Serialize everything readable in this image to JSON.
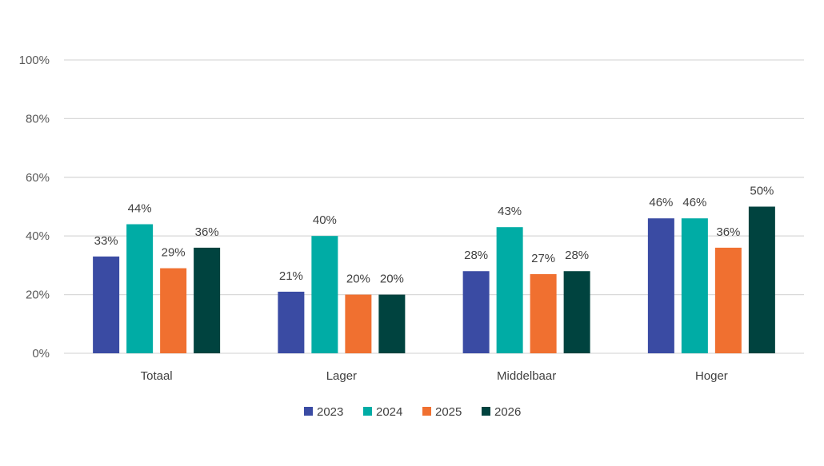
{
  "chart_data": {
    "type": "bar",
    "title": "",
    "xlabel": "",
    "ylabel": "",
    "ylim": [
      0,
      100
    ],
    "yticks": [
      "0%",
      "20%",
      "40%",
      "60%",
      "80%",
      "100%"
    ],
    "ytick_values": [
      0,
      20,
      40,
      60,
      80,
      100
    ],
    "categories": [
      "Totaal",
      "Lager",
      "Middelbaar",
      "Hoger"
    ],
    "series": [
      {
        "name": "2023",
        "color": "#3a4ba3",
        "values": [
          33,
          21,
          28,
          46
        ],
        "labels": [
          "33%",
          "21%",
          "28%",
          "46%"
        ]
      },
      {
        "name": "2024",
        "color": "#00aca5",
        "values": [
          44,
          40,
          43,
          46
        ],
        "labels": [
          "44%",
          "40%",
          "43%",
          "46%"
        ]
      },
      {
        "name": "2025",
        "color": "#f07030",
        "values": [
          29,
          20,
          27,
          36
        ],
        "labels": [
          "29%",
          "20%",
          "27%",
          "36%"
        ]
      },
      {
        "name": "2026",
        "color": "#00433f",
        "values": [
          36,
          20,
          28,
          50
        ],
        "labels": [
          "36%",
          "20%",
          "28%",
          "50%"
        ]
      }
    ],
    "grid": true,
    "legend_position": "bottom"
  }
}
